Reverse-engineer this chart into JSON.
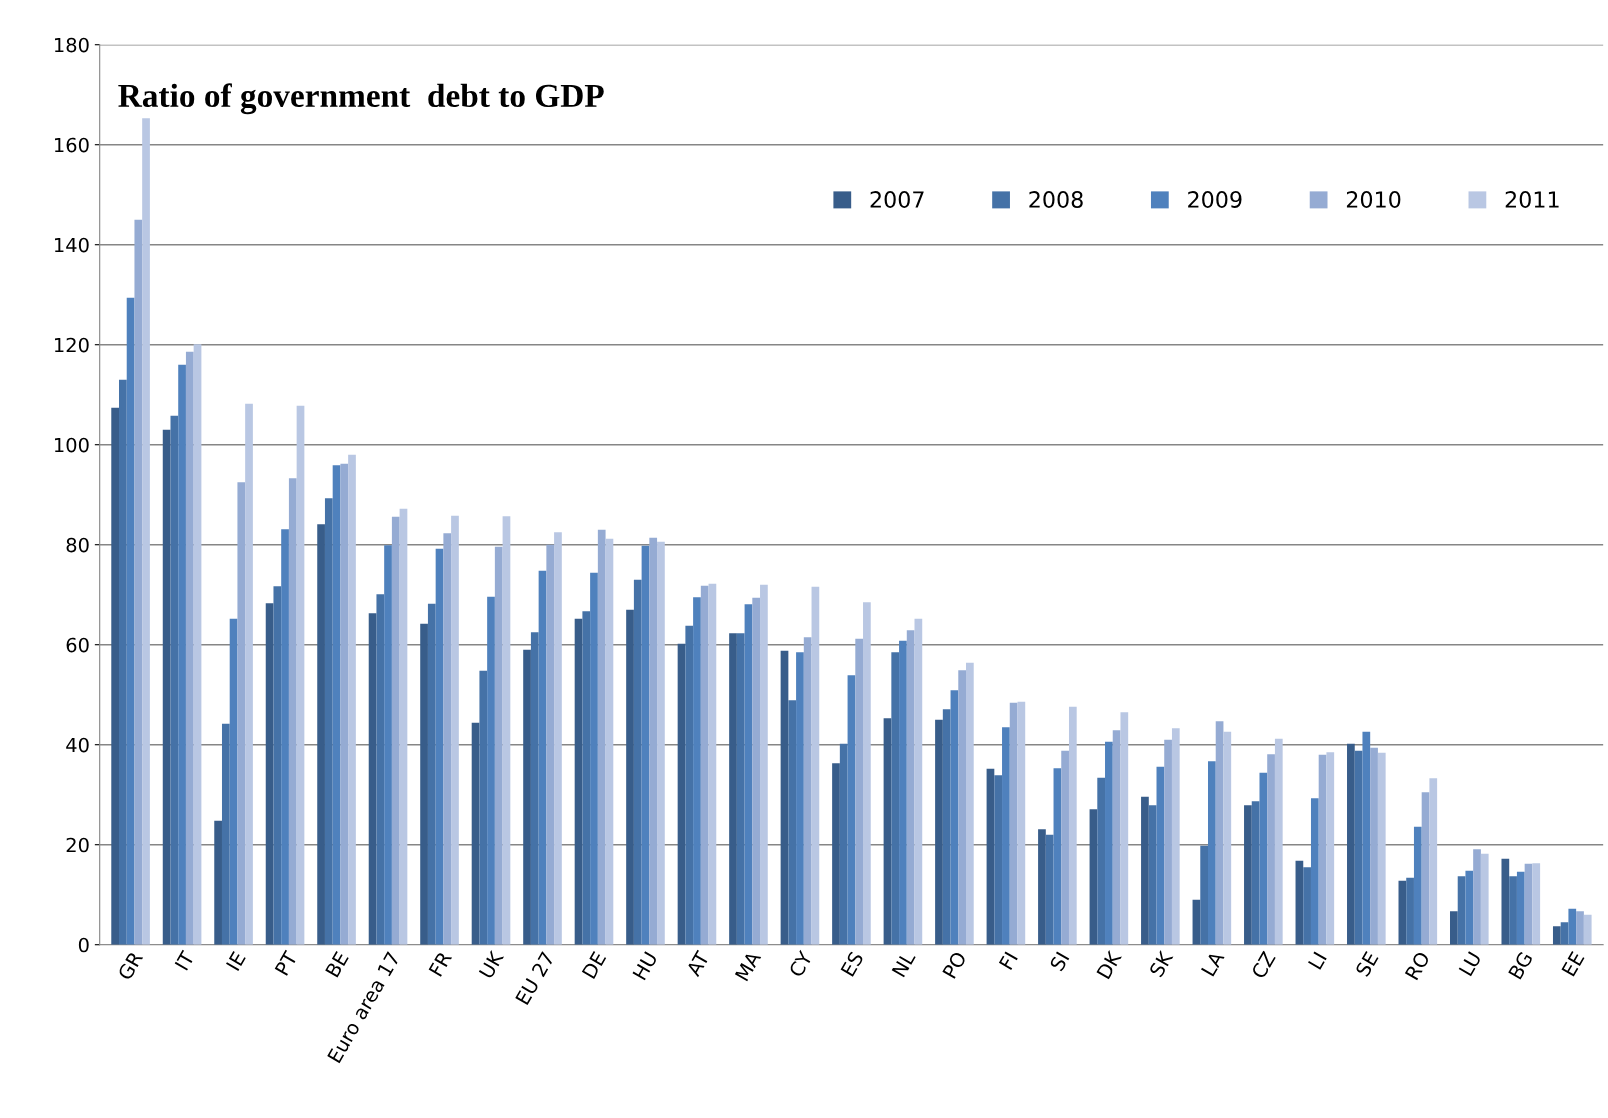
{
  "chart_data": {
    "type": "bar",
    "title": "Ratio of government  debt to GDP",
    "categories": [
      "GR",
      "IT",
      "IE",
      "PT",
      "BE",
      "Euro area 17",
      "FR",
      "UK",
      "EU 27",
      "DE",
      "HU",
      "AT",
      "MA",
      "CY",
      "ES",
      "NL",
      "PO",
      "FI",
      "SI",
      "DK",
      "SK",
      "LA",
      "CZ",
      "LI",
      "SE",
      "RO",
      "LU",
      "BG",
      "EE"
    ],
    "series": [
      {
        "name": "2007",
        "color": "#385d8a",
        "values": [
          107.4,
          103,
          24.8,
          68.3,
          84.1,
          66.3,
          64.2,
          44.4,
          59.0,
          65.2,
          67.0,
          60.2,
          62.3,
          58.8,
          36.3,
          45.3,
          45.0,
          35.2,
          23.1,
          27.1,
          29.6,
          9.0,
          27.9,
          16.8,
          40.2,
          12.8,
          6.7,
          17.2,
          3.7
        ]
      },
      {
        "name": "2008",
        "color": "#4572a7",
        "values": [
          113,
          105.8,
          44.2,
          71.7,
          89.3,
          70.1,
          68.2,
          54.8,
          62.5,
          66.7,
          73.0,
          63.8,
          62.3,
          48.9,
          40.2,
          58.5,
          47.1,
          33.9,
          22.0,
          33.4,
          27.9,
          19.8,
          28.7,
          15.5,
          38.8,
          13.4,
          13.7,
          13.7,
          4.5
        ]
      },
      {
        "name": "2009",
        "color": "#4f81bd",
        "values": [
          129.4,
          116,
          65.2,
          83.1,
          95.9,
          79.9,
          79.2,
          69.6,
          74.8,
          74.4,
          79.8,
          69.5,
          68.1,
          58.5,
          53.9,
          60.8,
          50.9,
          43.5,
          35.3,
          40.6,
          35.6,
          36.7,
          34.4,
          29.3,
          42.6,
          23.6,
          14.8,
          14.6,
          7.2
        ]
      },
      {
        "name": "2010",
        "color": "#95abd3",
        "values": [
          145,
          118.6,
          92.5,
          93.3,
          96.2,
          85.6,
          82.3,
          79.6,
          80.0,
          83.0,
          81.4,
          71.8,
          69.4,
          61.5,
          61.2,
          62.9,
          54.9,
          48.4,
          38.8,
          42.9,
          41.0,
          44.7,
          38.1,
          38.0,
          39.4,
          30.5,
          19.1,
          16.2,
          6.7
        ]
      },
      {
        "name": "2011",
        "color": "#b9c7e3",
        "values": [
          165.3,
          120.1,
          108.2,
          107.8,
          98.0,
          87.2,
          85.8,
          85.7,
          82.5,
          81.2,
          80.6,
          72.2,
          72.0,
          71.6,
          68.5,
          65.2,
          56.4,
          48.6,
          47.6,
          46.5,
          43.3,
          42.6,
          41.2,
          38.5,
          38.4,
          33.3,
          18.2,
          16.3,
          6.0
        ]
      }
    ],
    "ylim": [
      0,
      180
    ],
    "yticks": [
      0,
      20,
      40,
      60,
      80,
      100,
      120,
      140,
      160,
      180
    ],
    "grid": "y",
    "legend": "top right"
  }
}
